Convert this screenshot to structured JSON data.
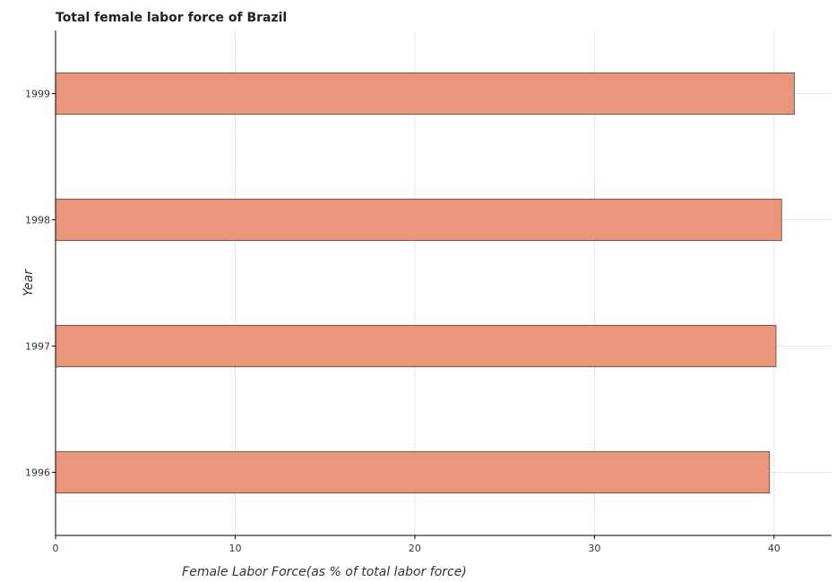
{
  "chart_data": {
    "type": "bar",
    "orientation": "horizontal",
    "title": "Total female labor force of Brazil",
    "xlabel": "Female Labor Force(as % of total labor force)",
    "ylabel": "Year",
    "categories": [
      "1996",
      "1997",
      "1998",
      "1999"
    ],
    "values": [
      39.75,
      40.11,
      40.42,
      41.13
    ],
    "xlim": [
      0,
      43.2
    ],
    "xticks": [
      0,
      10,
      20,
      30,
      40
    ],
    "grid": true,
    "bar_color": "#e9967a"
  }
}
